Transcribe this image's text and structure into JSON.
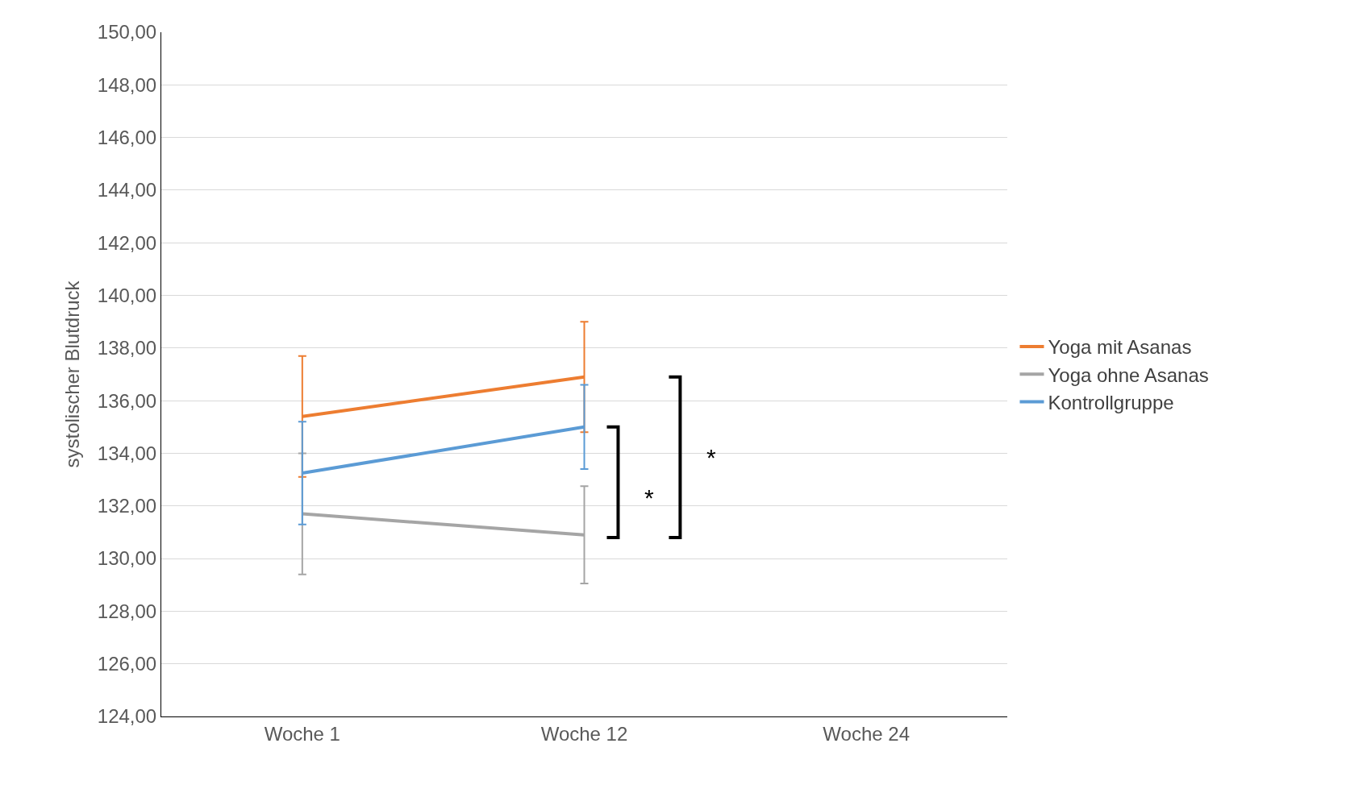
{
  "chart_data": {
    "type": "line",
    "ylabel": "systolischer Blutdruck",
    "categories": [
      "Woche 1",
      "Woche 12",
      "Woche 24"
    ],
    "series": [
      {
        "name": "Yoga mit Asanas",
        "color": "#ed7d31",
        "values": [
          135.4,
          136.9,
          null
        ],
        "errors": [
          2.3,
          2.1,
          null
        ]
      },
      {
        "name": "Yoga ohne Asanas",
        "color": "#a5a5a5",
        "values": [
          131.7,
          130.9,
          null
        ],
        "errors": [
          2.3,
          1.85,
          null
        ]
      },
      {
        "name": "Kontrollgruppe",
        "color": "#5b9bd5",
        "values": [
          133.25,
          135.0,
          null
        ],
        "errors": [
          1.95,
          1.6,
          null
        ]
      }
    ],
    "ylim": [
      124,
      150
    ],
    "yticks": [
      {
        "value": 124,
        "label": "124,00"
      },
      {
        "value": 126,
        "label": "126,00"
      },
      {
        "value": 128,
        "label": "128,00"
      },
      {
        "value": 130,
        "label": "130,00"
      },
      {
        "value": 132,
        "label": "132,00"
      },
      {
        "value": 134,
        "label": "134,00"
      },
      {
        "value": 136,
        "label": "136,00"
      },
      {
        "value": 138,
        "label": "138,00"
      },
      {
        "value": 140,
        "label": "140,00"
      },
      {
        "value": 142,
        "label": "142,00"
      },
      {
        "value": 144,
        "label": "144,00"
      },
      {
        "value": 146,
        "label": "146,00"
      },
      {
        "value": 148,
        "label": "148,00"
      },
      {
        "value": 150,
        "label": "150,00"
      }
    ],
    "annotations": [
      "*",
      "*"
    ],
    "grid": "y",
    "legend": "right",
    "marker": "none",
    "line_style": "solid"
  }
}
